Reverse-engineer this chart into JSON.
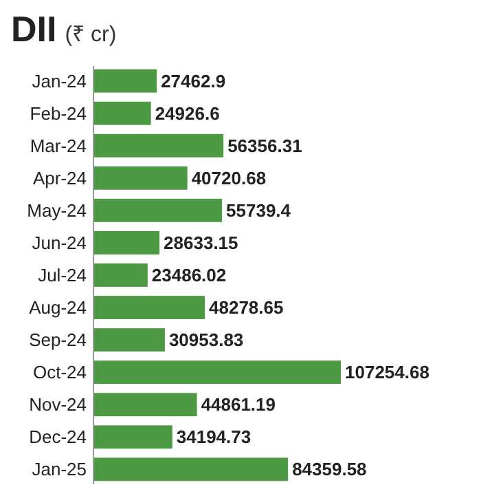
{
  "chart_data": {
    "type": "bar",
    "orientation": "horizontal",
    "title": "DII",
    "subtitle": "(₹ cr)",
    "data_labels": true,
    "color": "#4e9a44",
    "categories": [
      "Jan-24",
      "Feb-24",
      "Mar-24",
      "Apr-24",
      "May-24",
      "Jun-24",
      "Jul-24",
      "Aug-24",
      "Sep-24",
      "Oct-24",
      "Nov-24",
      "Dec-24",
      "Jan-25"
    ],
    "values": [
      27462.9,
      24926.6,
      56356.31,
      40720.68,
      55739.4,
      28633.15,
      23486.02,
      48278.65,
      30953.83,
      107254.68,
      44861.19,
      34194.73,
      84359.58
    ]
  }
}
